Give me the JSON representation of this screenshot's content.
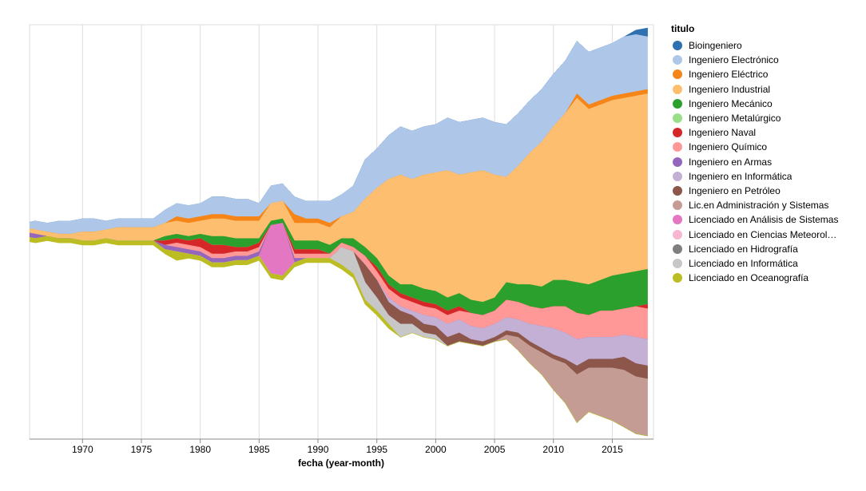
{
  "chart_data": {
    "type": "area",
    "stacking": "center",
    "xlabel": "fecha (year-month)",
    "x_ticks": [
      "1970",
      "1975",
      "1980",
      "1985",
      "1990",
      "1995",
      "2000",
      "2005",
      "2010",
      "2015"
    ],
    "xlim": [
      1965.5,
      2018.5
    ],
    "grid": true,
    "legend_title": "titulo",
    "legend_placement": "right",
    "x": [
      1965,
      1966,
      1967,
      1968,
      1969,
      1970,
      1971,
      1972,
      1973,
      1974,
      1975,
      1976,
      1977,
      1978,
      1979,
      1980,
      1981,
      1982,
      1983,
      1984,
      1985,
      1986,
      1987,
      1988,
      1989,
      1990,
      1991,
      1992,
      1993,
      1994,
      1995,
      1996,
      1997,
      1998,
      1999,
      2000,
      2001,
      2002,
      2003,
      2004,
      2005,
      2006,
      2007,
      2008,
      2009,
      2010,
      2011,
      2012,
      2013,
      2014,
      2015,
      2016,
      2017,
      2018
    ],
    "series": [
      {
        "name": "Bioingeniero",
        "color": "#2e70b0",
        "values": [
          0,
          0,
          0,
          0,
          0,
          0,
          0,
          0,
          0,
          0,
          0,
          0,
          0,
          0,
          0,
          0,
          0,
          0,
          0,
          0,
          0,
          0,
          0,
          0,
          0,
          0,
          0,
          0,
          0,
          0,
          0,
          0,
          0,
          0,
          0,
          0,
          0,
          0,
          0,
          0,
          0,
          0,
          0,
          0,
          0,
          0,
          0,
          0,
          0,
          0,
          0,
          0,
          1,
          2
        ]
      },
      {
        "name": "Ingeniero Electrónico",
        "color": "#aec7e8",
        "values": [
          1,
          2,
          2,
          3,
          3,
          3,
          3,
          2,
          2,
          2,
          2,
          2,
          3,
          3,
          3,
          3,
          4,
          4,
          4,
          4,
          3,
          4,
          4,
          4,
          4,
          4,
          5,
          5,
          6,
          9,
          9,
          10,
          11,
          11,
          11,
          11,
          12,
          12,
          12,
          12,
          12,
          12,
          12,
          12,
          12,
          12,
          12,
          12,
          12,
          12,
          12,
          13,
          13,
          12
        ]
      },
      {
        "name": "Ingeniero Eléctrico",
        "color": "#f58518",
        "values": [
          0,
          0,
          0,
          0,
          0,
          0,
          0,
          0,
          0,
          0,
          0,
          0,
          0,
          1,
          1,
          1,
          1,
          1,
          1,
          1,
          1,
          0,
          0,
          2,
          1,
          1,
          1,
          0,
          0,
          0,
          0,
          0,
          0,
          0,
          0,
          0,
          0,
          0,
          0,
          0,
          0,
          0,
          0,
          0,
          0,
          0,
          0,
          1,
          1,
          1,
          1,
          1,
          1,
          1
        ]
      },
      {
        "name": "Ingeniero Industrial",
        "color": "#fdbf6f",
        "values": [
          1,
          1,
          1,
          1,
          1,
          2,
          2,
          2,
          3,
          3,
          3,
          3,
          3,
          3,
          3,
          3,
          4,
          4,
          4,
          4,
          4,
          4,
          4,
          4,
          4,
          4,
          4,
          5,
          6,
          11,
          16,
          22,
          25,
          24,
          26,
          27,
          29,
          27,
          29,
          30,
          28,
          24,
          27,
          30,
          33,
          35,
          38,
          42,
          40,
          40,
          40,
          40,
          40,
          40
        ]
      },
      {
        "name": "Ingeniero Mecánico",
        "color": "#2ca02c",
        "values": [
          0,
          0,
          0,
          0,
          0,
          0,
          0,
          0,
          0,
          0,
          0,
          0,
          1,
          1,
          1,
          1,
          2,
          2,
          2,
          2,
          1,
          1,
          1,
          2,
          2,
          2,
          2,
          1,
          2,
          2,
          2,
          2,
          2,
          3,
          3,
          3,
          3,
          3,
          3,
          3,
          3,
          4,
          4,
          5,
          5,
          6,
          6,
          7,
          7,
          7,
          8,
          8,
          8,
          8
        ]
      },
      {
        "name": "Ingeniero Metalúrgico",
        "color": "#98df8a",
        "values": [
          0,
          0,
          0,
          0,
          0,
          0,
          0,
          0,
          0,
          0,
          0,
          0,
          0,
          0,
          0,
          0,
          0,
          0,
          0,
          0,
          0,
          0,
          0,
          0,
          0,
          0,
          0,
          0,
          0,
          0,
          0,
          0,
          0,
          0,
          0,
          0,
          0,
          0,
          0,
          0,
          0,
          0,
          0,
          0,
          0,
          0,
          0,
          0,
          0,
          0,
          0,
          0,
          0,
          0
        ]
      },
      {
        "name": "Ingeniero Naval",
        "color": "#d62728",
        "values": [
          0,
          0,
          0,
          0,
          0,
          0,
          0,
          0,
          0,
          0,
          0,
          0,
          1,
          1,
          1,
          2,
          2,
          2,
          1,
          1,
          1,
          0,
          0,
          1,
          1,
          1,
          0,
          0,
          0,
          0,
          1,
          1,
          1,
          1,
          1,
          1,
          1,
          1,
          0,
          0,
          0,
          0,
          0,
          0,
          0,
          0,
          0,
          0,
          0,
          0,
          0,
          0,
          0,
          1
        ]
      },
      {
        "name": "Ingeniero Químico",
        "color": "#ff9896",
        "values": [
          0,
          0,
          0,
          0,
          0,
          0,
          0,
          0,
          0,
          0,
          0,
          0,
          0,
          1,
          1,
          1,
          1,
          1,
          1,
          1,
          1,
          0,
          0,
          1,
          1,
          1,
          1,
          1,
          1,
          2,
          2,
          2,
          2,
          2,
          2,
          2,
          2,
          2,
          3,
          3,
          3,
          4,
          4,
          4,
          4,
          5,
          6,
          6,
          5,
          6,
          6,
          6,
          7,
          7
        ]
      },
      {
        "name": "Ingeniero en Armas",
        "color": "#9467bd",
        "values": [
          1,
          1,
          0,
          0,
          0,
          0,
          0,
          0,
          0,
          0,
          0,
          0,
          1,
          1,
          1,
          1,
          1,
          1,
          1,
          1,
          1,
          0,
          0,
          1,
          0,
          0,
          0,
          0,
          0,
          0,
          0,
          0,
          0,
          0,
          0,
          0,
          0,
          0,
          0,
          0,
          0,
          0,
          0,
          0,
          0,
          0,
          0,
          0,
          0,
          0,
          0,
          0,
          0,
          0
        ]
      },
      {
        "name": "Ingeniero en Informática",
        "color": "#c5b0d5",
        "values": [
          0,
          0,
          0,
          0,
          0,
          0,
          0,
          0,
          0,
          0,
          0,
          0,
          0,
          0,
          0,
          0,
          0,
          0,
          0,
          0,
          0,
          0,
          0,
          0,
          0,
          0,
          0,
          0,
          0,
          0,
          0,
          1,
          1,
          1,
          2,
          2,
          3,
          3,
          3,
          3,
          3,
          3,
          3,
          4,
          5,
          6,
          6,
          6,
          5,
          5,
          5,
          5,
          6,
          6
        ]
      },
      {
        "name": "Ingeniero en Petróleo",
        "color": "#8c564b",
        "values": [
          0,
          0,
          0,
          0,
          0,
          0,
          0,
          0,
          0,
          0,
          0,
          0,
          0,
          0,
          0,
          0,
          0,
          0,
          0,
          0,
          0,
          0,
          0,
          0,
          0,
          0,
          0,
          0,
          0,
          4,
          4,
          3,
          3,
          2,
          2,
          2,
          2,
          2,
          1,
          1,
          1,
          1,
          1,
          1,
          1,
          1,
          1,
          2,
          2,
          2,
          2,
          3,
          3,
          3
        ]
      },
      {
        "name": "Lic.en Administración y Sistemas",
        "color": "#c49c94",
        "values": [
          0,
          0,
          0,
          0,
          0,
          0,
          0,
          0,
          0,
          0,
          0,
          0,
          0,
          0,
          0,
          0,
          0,
          0,
          0,
          0,
          0,
          0,
          0,
          0,
          0,
          0,
          0,
          0,
          0,
          0,
          0,
          0,
          0,
          0,
          0,
          0,
          0,
          0,
          0,
          0,
          0,
          1,
          3,
          4,
          5,
          7,
          9,
          11,
          10,
          11,
          12,
          13,
          13,
          13
        ]
      },
      {
        "name": "Licenciado en Análisis de Sistemas",
        "color": "#e377c2",
        "values": [
          0,
          0,
          0,
          0,
          0,
          0,
          0,
          0,
          0,
          0,
          0,
          0,
          0,
          0,
          0,
          0,
          0,
          0,
          0,
          0,
          0,
          11,
          12,
          0,
          0,
          0,
          0,
          0,
          0,
          0,
          0,
          0,
          0,
          0,
          0,
          0,
          0,
          0,
          0,
          0,
          0,
          0,
          0,
          0,
          0,
          0,
          0,
          0,
          0,
          0,
          0,
          0,
          0,
          0
        ]
      },
      {
        "name": "Licenciado en Ciencias Meteorol…",
        "color": "#f7b6d2",
        "values": [
          0,
          0,
          0,
          0,
          0,
          0,
          0,
          0,
          0,
          0,
          0,
          0,
          0,
          0,
          0,
          0,
          0,
          0,
          0,
          0,
          0,
          0,
          0,
          0,
          0,
          0,
          0,
          0,
          0,
          0,
          0,
          0,
          0,
          0,
          0,
          0,
          0,
          0,
          0,
          0,
          0,
          0,
          0,
          0,
          0,
          0,
          0,
          0,
          0,
          0,
          0,
          0,
          0,
          0
        ]
      },
      {
        "name": "Licenciado en Hidrografía",
        "color": "#7f7f7f",
        "values": [
          0,
          0,
          0,
          0,
          0,
          0,
          0,
          0,
          0,
          0,
          0,
          0,
          0,
          0,
          0,
          0,
          0,
          0,
          0,
          0,
          0,
          0,
          0,
          0,
          0,
          0,
          0,
          0,
          0,
          0,
          0,
          0,
          0,
          0,
          0,
          0,
          0,
          0,
          0,
          0,
          0,
          0,
          0,
          0,
          0,
          0,
          0,
          0,
          0,
          0,
          0,
          0,
          0,
          0
        ]
      },
      {
        "name": "Licenciado en Informática",
        "color": "#c7c7c7",
        "values": [
          0,
          0,
          0,
          0,
          0,
          0,
          0,
          0,
          0,
          0,
          0,
          0,
          0,
          0,
          0,
          0,
          0,
          0,
          0,
          0,
          0,
          0,
          0,
          0,
          0,
          0,
          0,
          4,
          5,
          4,
          3,
          2,
          3,
          2,
          1,
          1,
          0,
          0,
          0,
          0,
          0,
          0,
          0,
          0,
          0,
          0,
          0,
          0,
          0,
          0,
          0,
          0,
          0,
          0
        ]
      },
      {
        "name": "Licenciado en Oceanografía",
        "color": "#bcbd22",
        "values": [
          1,
          1,
          1,
          1,
          1,
          1,
          1,
          1,
          1,
          1,
          1,
          1,
          1,
          2,
          1,
          1,
          1,
          1,
          1,
          1,
          1,
          1,
          1,
          1,
          1,
          1,
          1,
          1,
          1,
          1,
          1,
          1,
          0,
          0,
          0,
          0,
          0,
          0,
          0,
          0,
          0,
          0,
          0,
          0,
          0,
          0,
          0,
          0,
          0,
          0,
          0,
          0,
          0,
          0
        ]
      }
    ]
  }
}
